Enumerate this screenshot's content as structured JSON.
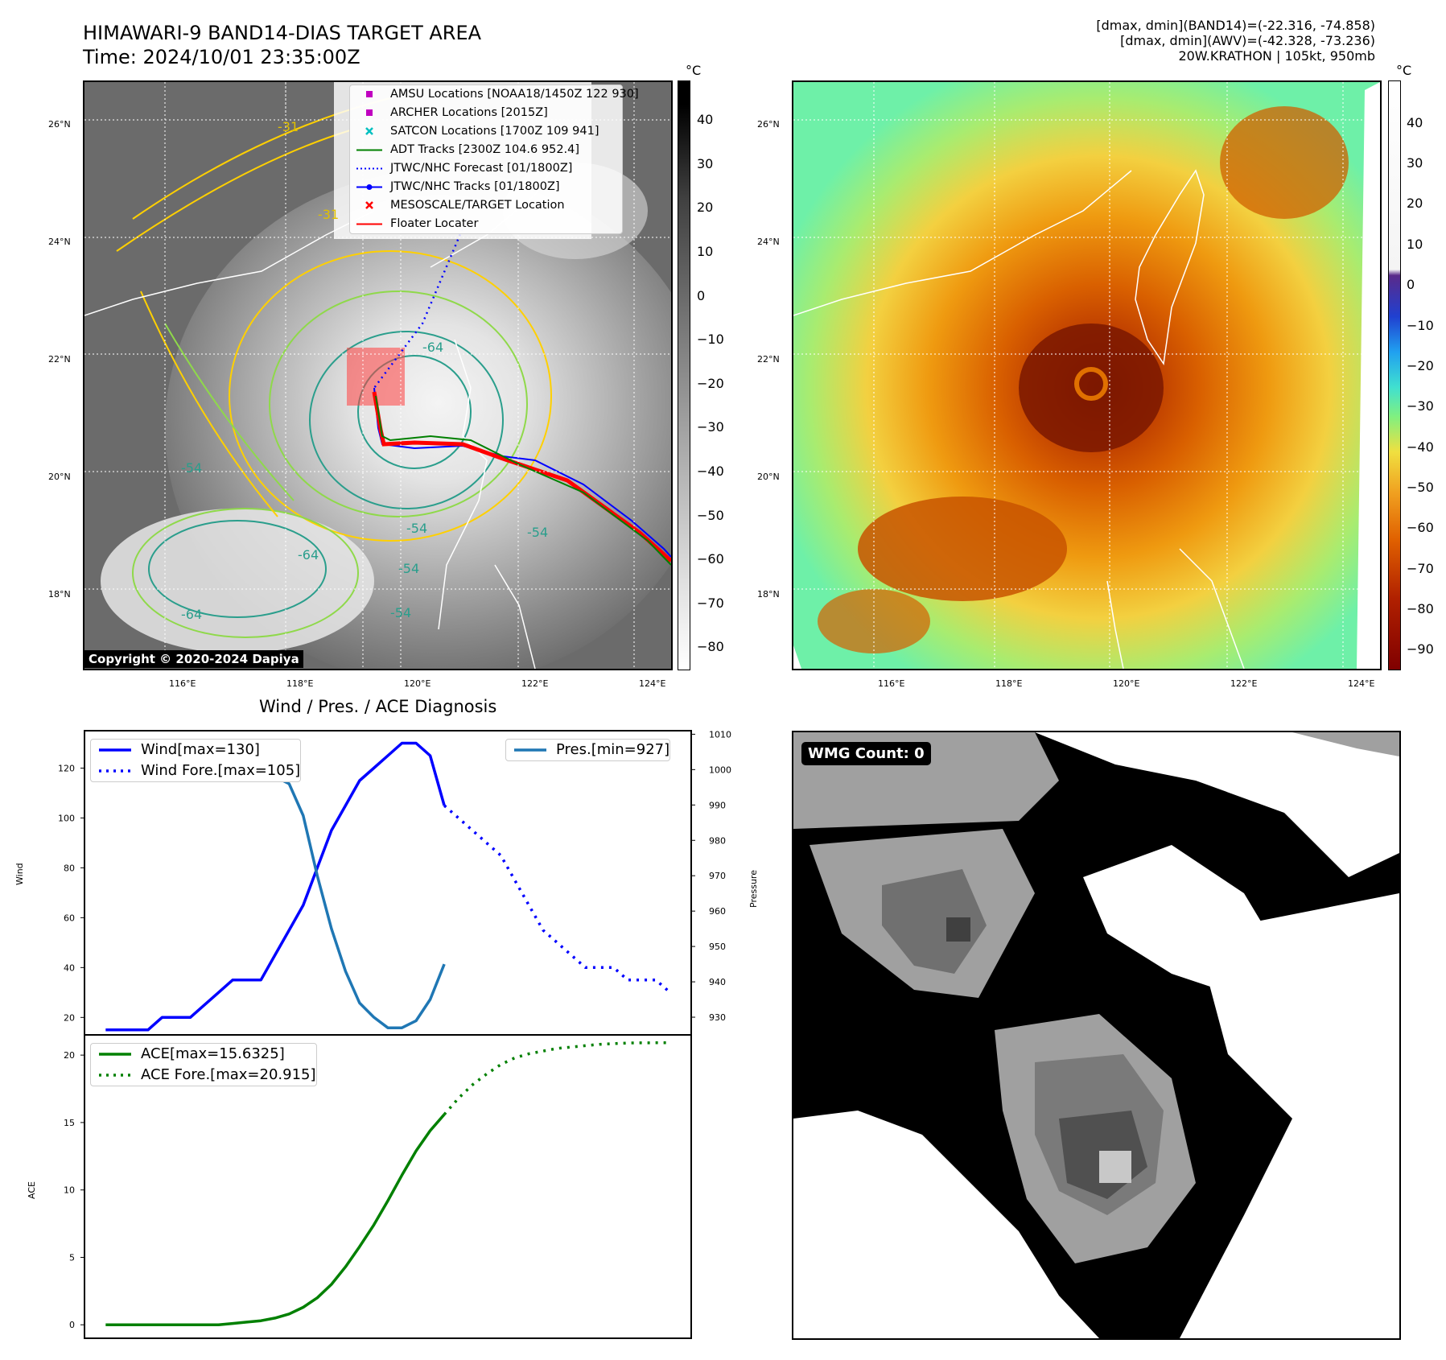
{
  "header": {
    "title_line1": "HIMAWARI-9 BAND14-DIAS TARGET AREA",
    "title_line2": "Time: 2024/10/01 23:35:00Z",
    "info_line1": "[dmax, dmin](BAND14)=(-22.316, -74.858)",
    "info_line2": "[dmax, dmin](AWV)=(-42.328, -73.236)",
    "info_line3": "20W.KRATHON | 105kt, 950mb"
  },
  "map_left": {
    "lat_labels": [
      "26°N",
      "24°N",
      "22°N",
      "20°N",
      "18°N"
    ],
    "lon_labels": [
      "116°E",
      "118°E",
      "120°E",
      "122°E",
      "124°E"
    ],
    "copyright": "Copyright © 2020-2024 Dapiya",
    "legend": [
      {
        "label": "AMSU Locations [NOAA18/1450Z 122 930]",
        "color": "#c000c0",
        "symbol": "square"
      },
      {
        "label": "ARCHER Locations [2015Z]",
        "color": "#c000c0",
        "symbol": "square"
      },
      {
        "label": "SATCON Locations [1700Z 109 941]",
        "color": "#00c0c0",
        "symbol": "x"
      },
      {
        "label": "ADT Tracks [2300Z 104.6 952.4]",
        "color": "#008000",
        "symbol": "line"
      },
      {
        "label": "JTWC/NHC Forecast [01/1800Z]",
        "color": "#0000ff",
        "symbol": "dotted"
      },
      {
        "label": "JTWC/NHC Tracks [01/1800Z]",
        "color": "#0000ff",
        "symbol": "line-dot"
      },
      {
        "label": "MESOSCALE/TARGET Location",
        "color": "#ff0000",
        "symbol": "x"
      },
      {
        "label": "Floater Locater",
        "color": "#ff0000",
        "symbol": "line"
      }
    ],
    "contour_labels": [
      "-31",
      "-31",
      "-54",
      "-64",
      "-54",
      "-54",
      "-64",
      "-54",
      "-64",
      "-54"
    ],
    "colorbar": {
      "unit": "°C",
      "ticks": [
        "40",
        "30",
        "20",
        "10",
        "0",
        "−10",
        "−20",
        "−30",
        "−40",
        "−50",
        "−60",
        "−70",
        "−80"
      ]
    }
  },
  "map_right": {
    "lat_labels": [
      "26°N",
      "24°N",
      "22°N",
      "20°N",
      "18°N"
    ],
    "lon_labels": [
      "116°E",
      "118°E",
      "120°E",
      "122°E",
      "124°E"
    ],
    "colorbar": {
      "unit": "°C",
      "ticks": [
        "40",
        "30",
        "20",
        "10",
        "0",
        "−10",
        "−20",
        "−30",
        "−40",
        "−50",
        "−60",
        "−70",
        "−80",
        "−90"
      ]
    }
  },
  "diagnosis": {
    "title": "Wind / Pres. / ACE Diagnosis",
    "wind_axis_label": "Wind",
    "pressure_axis_label": "Pressure",
    "ace_axis_label": "ACE",
    "wind_legend": [
      "Wind[max=130]",
      "Wind Fore.[max=105]"
    ],
    "pres_legend": "Pres.[min=927]",
    "ace_legend": [
      "ACE[max=15.6325]",
      "ACE Fore.[max=20.915]"
    ]
  },
  "wmg": {
    "label": "WMG Count: 0"
  },
  "colors": {
    "wind": "#0000ff",
    "pressure": "#1f77b4",
    "ace": "#008000"
  },
  "chart_data": [
    {
      "type": "line",
      "title": "Wind / Pres. / ACE Diagnosis",
      "ylabel": "Wind",
      "ylim": [
        13,
        135
      ],
      "yticks": [
        20,
        40,
        60,
        80,
        100,
        120
      ],
      "series": [
        {
          "name": "Wind[max=130]",
          "x": [
            0,
            1,
            2,
            3,
            4,
            5,
            6,
            7,
            8,
            9,
            10,
            11,
            12,
            13,
            14,
            15,
            16,
            17,
            18,
            19,
            20,
            21,
            22,
            23,
            24
          ],
          "values": [
            15,
            15,
            15,
            15,
            20,
            20,
            20,
            25,
            30,
            35,
            35,
            35,
            45,
            55,
            65,
            80,
            95,
            105,
            115,
            120,
            125,
            130,
            130,
            125,
            105
          ]
        },
        {
          "name": "Wind Fore.[max=105]",
          "x": [
            24,
            25,
            26,
            27,
            28,
            29,
            30,
            31,
            32,
            33,
            34,
            35,
            36,
            37,
            38,
            39,
            40
          ],
          "values": [
            105,
            100,
            95,
            90,
            85,
            75,
            65,
            55,
            50,
            45,
            40,
            40,
            40,
            35,
            35,
            35,
            30
          ]
        }
      ]
    },
    {
      "type": "line",
      "ylabel": "Pressure",
      "ylim": [
        925,
        1011
      ],
      "yticks": [
        930,
        940,
        950,
        960,
        970,
        980,
        990,
        1000,
        1010
      ],
      "series": [
        {
          "name": "Pres.[min=927]",
          "x": [
            2,
            3,
            4,
            5,
            6,
            7,
            8,
            9,
            10,
            11,
            12,
            13,
            14,
            15,
            16,
            17,
            18,
            19,
            20,
            21,
            22,
            23,
            24
          ],
          "values": [
            1008,
            1008,
            1008,
            1007,
            1005,
            1005,
            1003,
            1001,
            1001,
            1000,
            998,
            996,
            987,
            970,
            955,
            943,
            934,
            930,
            927,
            927,
            929,
            935,
            945
          ]
        }
      ]
    },
    {
      "type": "line",
      "ylabel": "ACE",
      "ylim": [
        -1,
        21.5
      ],
      "yticks": [
        0,
        5,
        10,
        15,
        20
      ],
      "series": [
        {
          "name": "ACE[max=15.6325]",
          "x": [
            0,
            1,
            2,
            3,
            4,
            5,
            6,
            7,
            8,
            9,
            10,
            11,
            12,
            13,
            14,
            15,
            16,
            17,
            18,
            19,
            20,
            21,
            22,
            23,
            24
          ],
          "values": [
            0,
            0,
            0,
            0,
            0,
            0,
            0,
            0,
            0,
            0.1,
            0.2,
            0.3,
            0.5,
            0.8,
            1.3,
            2.0,
            3.0,
            4.3,
            5.8,
            7.4,
            9.2,
            11.1,
            12.9,
            14.4,
            15.6
          ]
        },
        {
          "name": "ACE Fore.[max=20.915]",
          "x": [
            24,
            25,
            26,
            27,
            28,
            29,
            30,
            31,
            32,
            33,
            34,
            35,
            36,
            37,
            38,
            39,
            40
          ],
          "values": [
            15.6,
            16.8,
            17.8,
            18.6,
            19.3,
            19.8,
            20.1,
            20.3,
            20.5,
            20.6,
            20.7,
            20.8,
            20.85,
            20.9,
            20.91,
            20.915,
            20.915
          ]
        }
      ]
    }
  ]
}
